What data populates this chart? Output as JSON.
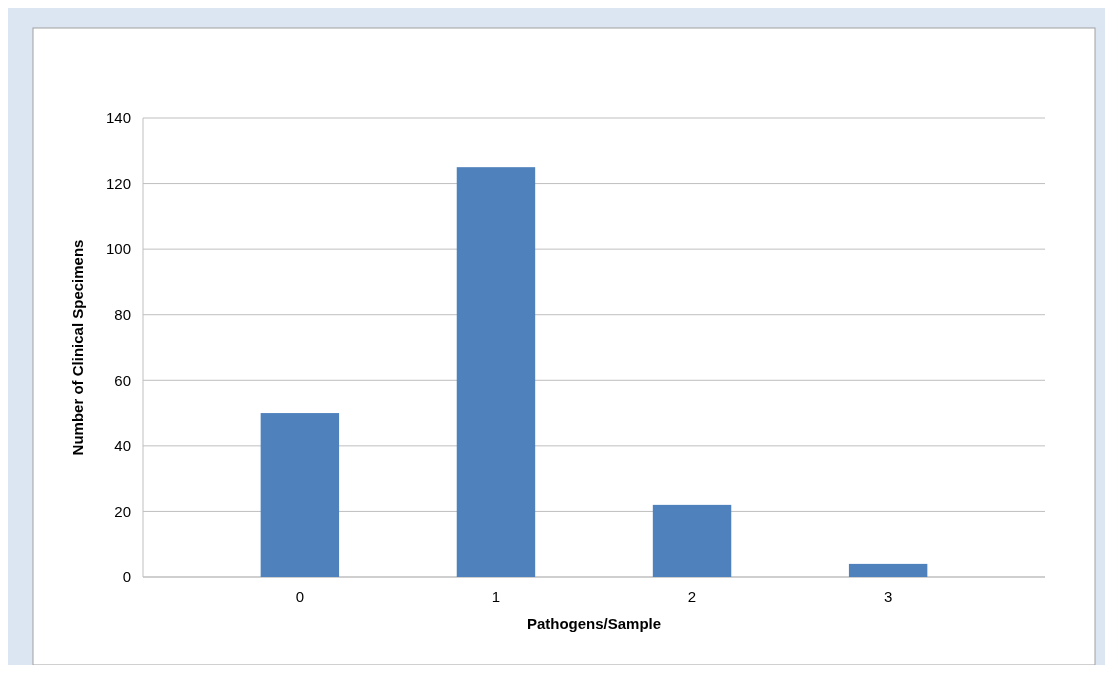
{
  "chart_data": {
    "type": "bar",
    "xlabel": "Pathogens/Sample",
    "ylabel": "Number of Clinical Specimens",
    "categories": [
      "0",
      "1",
      "2",
      "3"
    ],
    "values": [
      50,
      125,
      22,
      4
    ],
    "color": "#4f81bd",
    "ylim": [
      0,
      140
    ],
    "yticks": [
      0,
      20,
      40,
      60,
      80,
      100,
      120,
      140
    ],
    "grid": true
  }
}
